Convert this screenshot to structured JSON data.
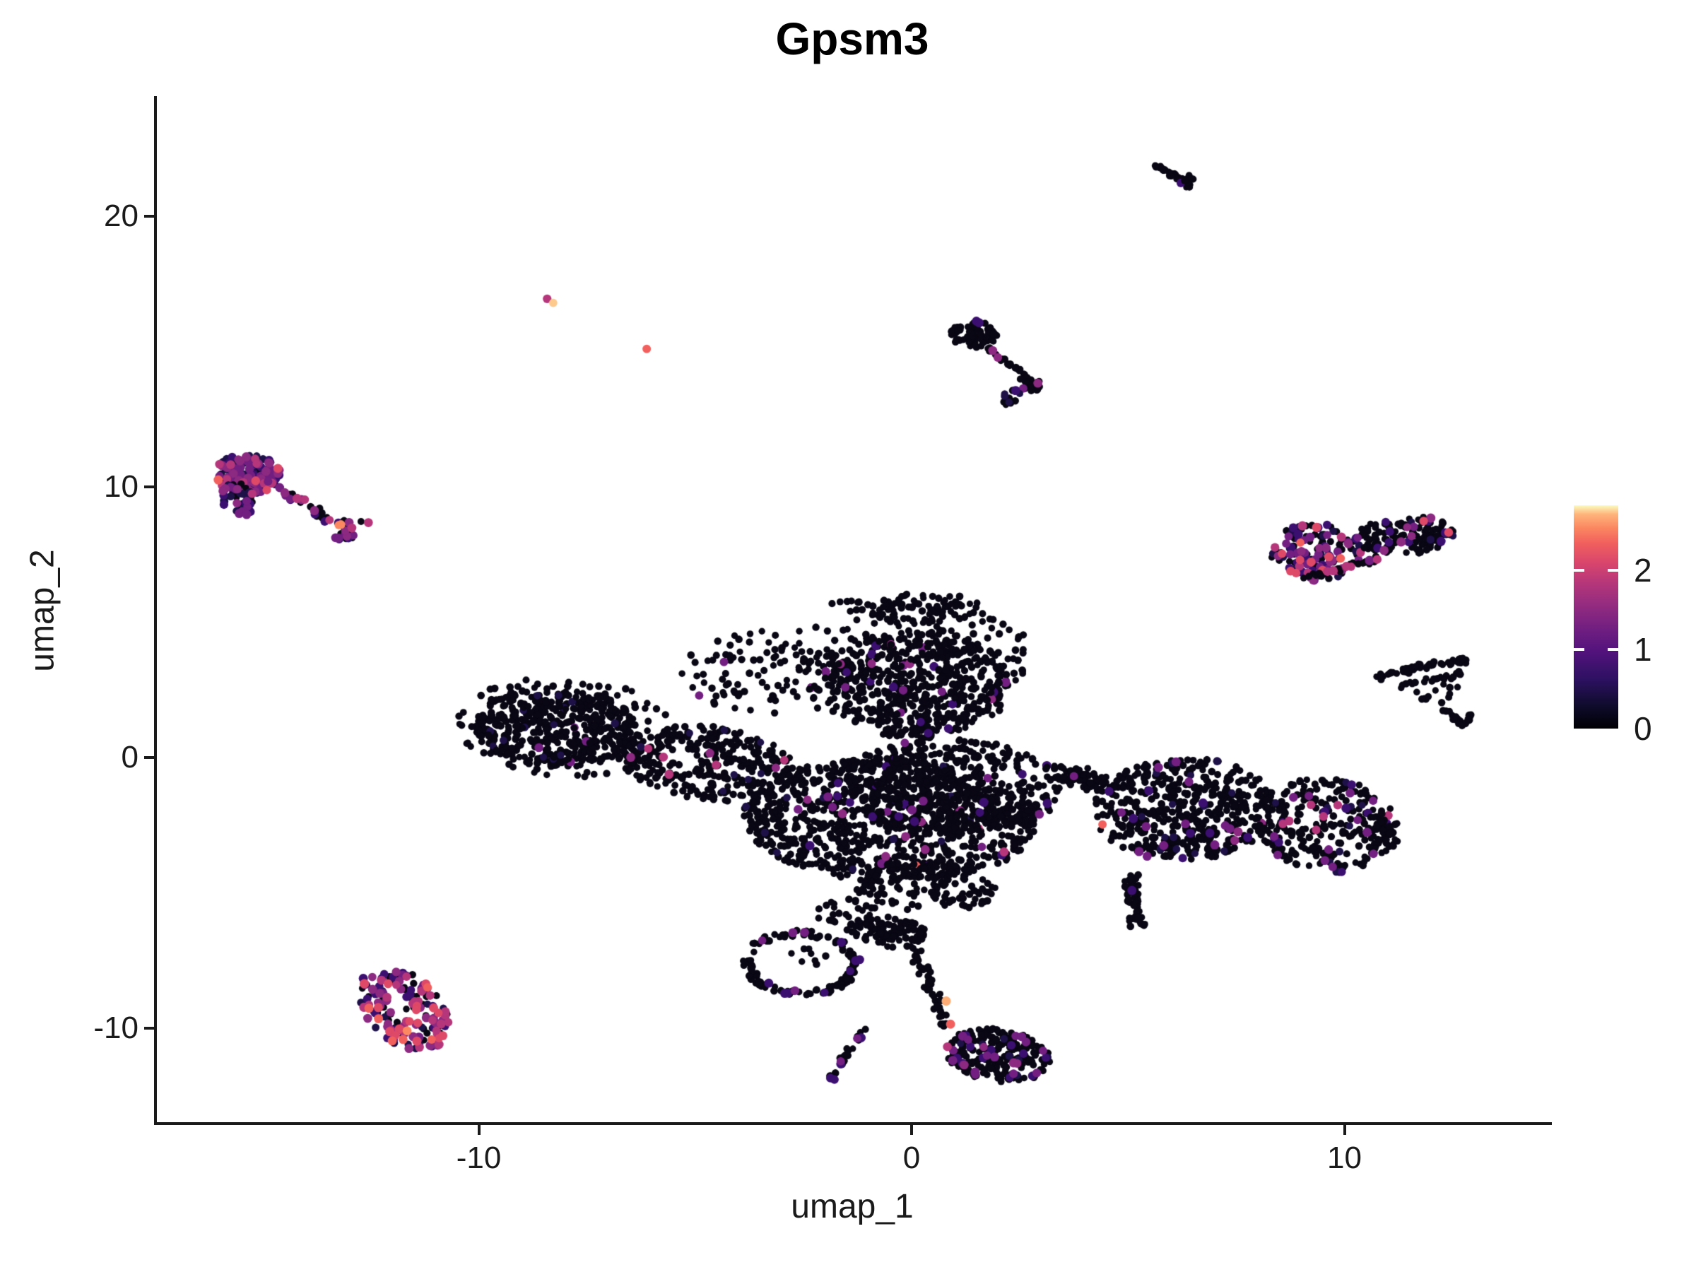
{
  "chart_data": {
    "type": "scatter",
    "title": "Gpsm3",
    "xlabel": "umap_1",
    "ylabel": "umap_2",
    "xlim": [
      -17.4,
      14.7
    ],
    "ylim": [
      -13.5,
      24.4
    ],
    "xticks": [
      -10,
      0,
      10
    ],
    "yticks": [
      20,
      10,
      0,
      -10
    ],
    "grid": false,
    "legend_position": "right",
    "legend": {
      "ticks": [
        2,
        1,
        0
      ],
      "max": 2.82,
      "bar_gradient": [
        [
          "0%",
          "#000004"
        ],
        [
          "10%",
          "#0e0b2b"
        ],
        [
          "22%",
          "#2d1161"
        ],
        [
          "34%",
          "#51127c"
        ],
        [
          "45%",
          "#721f81"
        ],
        [
          "55%",
          "#932b80"
        ],
        [
          "65%",
          "#b5367a"
        ],
        [
          "74%",
          "#d8456c"
        ],
        [
          "83%",
          "#f1605d"
        ],
        [
          "90%",
          "#fb8861"
        ],
        [
          "96%",
          "#feb57c"
        ],
        [
          "100%",
          "#fcfdbf"
        ]
      ]
    },
    "palette": {
      "k0": "#0a0714",
      "k1": "#1d1147",
      "k2": "#3b0f70",
      "k3": "#57157e",
      "k4": "#721f81",
      "k5": "#8c2981",
      "k6": "#b5367a",
      "k7": "#de4968",
      "k8": "#f1605d",
      "k9": "#fb8861",
      "k10": "#feac76",
      "k11": "#fec98d"
    },
    "palette_order": [
      "k0",
      "k1",
      "k2",
      "k3",
      "k4",
      "k5",
      "k6",
      "k7",
      "k8",
      "k9",
      "k10",
      "k11"
    ],
    "clusters": [
      {
        "name": "main-left-arm-core",
        "shape": "blob",
        "cx": -8.2,
        "cy": 1.1,
        "rx": 1.9,
        "ry": 1.45,
        "rot": -8,
        "n": 430,
        "colors": {
          "k0": 0.97,
          "k1": 0.02,
          "k4": 0.01
        }
      },
      {
        "name": "main-left-arm-halo",
        "shape": "blob",
        "cx": -8.0,
        "cy": 1.1,
        "rx": 2.5,
        "ry": 1.85,
        "rot": -8,
        "n": 130,
        "colors": {
          "k0": 1
        }
      },
      {
        "name": "main-neck",
        "shape": "blob",
        "cx": -4.7,
        "cy": -0.2,
        "rx": 2.1,
        "ry": 1.35,
        "rot": -14,
        "n": 330,
        "colors": {
          "k0": 0.95,
          "k1": 0.02,
          "k3": 0.01,
          "k5": 0.01,
          "k6": 0.01
        }
      },
      {
        "name": "upper-bridge-sparse",
        "shape": "blob",
        "cx": -3.7,
        "cy": 3.2,
        "rx": 1.8,
        "ry": 1.5,
        "rot": -30,
        "n": 80,
        "colors": {
          "k0": 0.97,
          "k4": 0.03
        }
      },
      {
        "name": "main-upper-core",
        "shape": "blob",
        "cx": 0.1,
        "cy": 2.7,
        "rx": 2.2,
        "ry": 2.0,
        "rot": 0,
        "n": 520,
        "colors": {
          "k0": 0.95,
          "k2": 0.02,
          "k4": 0.02,
          "k5": 0.01
        }
      },
      {
        "name": "main-upper-halo",
        "shape": "blob",
        "cx": -0.2,
        "cy": 3.6,
        "rx": 3.0,
        "ry": 2.5,
        "rot": 0,
        "n": 200,
        "colors": {
          "k0": 1
        }
      },
      {
        "name": "main-top-ridge",
        "shape": "blob",
        "cx": 0.3,
        "cy": 5.5,
        "rx": 1.3,
        "ry": 0.55,
        "rot": 5,
        "n": 70,
        "colors": {
          "k0": 1
        }
      },
      {
        "name": "main-lower-body",
        "shape": "blob",
        "cx": -0.5,
        "cy": -2.3,
        "rx": 3.4,
        "ry": 2.3,
        "rot": -4,
        "n": 950,
        "colors": {
          "k0": 0.955,
          "k1": 0.015,
          "k2": 0.01,
          "k4": 0.01,
          "k5": 0.005,
          "k6": 0.003,
          "k8": 0.002
        }
      },
      {
        "name": "main-mid-dense",
        "shape": "blob",
        "cx": 1.0,
        "cy": -1.0,
        "rx": 2.5,
        "ry": 1.7,
        "rot": -8,
        "n": 420,
        "colors": {
          "k0": 0.97,
          "k2": 0.02,
          "k4": 0.01
        }
      },
      {
        "name": "main-bottom-tip",
        "shape": "blob",
        "cx": 0.3,
        "cy": -4.8,
        "rx": 1.7,
        "ry": 0.9,
        "rot": -6,
        "n": 140,
        "colors": {
          "k0": 1
        }
      },
      {
        "name": "bridge-right",
        "shape": "line",
        "x1": 3.3,
        "y1": -0.5,
        "x2": 4.5,
        "y2": -1.0,
        "jitter": 0.4,
        "n": 70,
        "colors": {
          "k0": 0.97,
          "k4": 0.03
        }
      },
      {
        "name": "right-arm",
        "shape": "blob",
        "cx": 6.3,
        "cy": -1.9,
        "rx": 2.1,
        "ry": 1.9,
        "rot": 10,
        "n": 500,
        "colors": {
          "k0": 0.92,
          "k1": 0.025,
          "k2": 0.02,
          "k4": 0.02,
          "k5": 0.01,
          "k8": 0.005
        }
      },
      {
        "name": "right-arm-tail",
        "shape": "line",
        "x1": 5.05,
        "y1": -4.3,
        "x2": 5.25,
        "y2": -6.3,
        "jitter": 0.22,
        "n": 55,
        "colors": {
          "k0": 0.95,
          "k2": 0.05
        }
      },
      {
        "name": "right-wing",
        "shape": "blob",
        "cx": 9.6,
        "cy": -2.5,
        "rx": 1.6,
        "ry": 1.8,
        "rot": 25,
        "n": 280,
        "colors": {
          "k0": 0.9,
          "k1": 0.03,
          "k2": 0.03,
          "k4": 0.03,
          "k6": 0.01
        }
      },
      {
        "name": "right-wing-tip",
        "shape": "line",
        "x1": 10.7,
        "y1": -2.0,
        "x2": 11.1,
        "y2": -3.2,
        "jitter": 0.28,
        "n": 35,
        "colors": {
          "k0": 1
        }
      },
      {
        "name": "top-dash",
        "shape": "line",
        "x1": 5.7,
        "y1": 21.85,
        "x2": 6.5,
        "y2": 21.05,
        "jitter": 0.1,
        "n": 32,
        "colors": {
          "k0": 0.97,
          "k2": 0.03
        }
      },
      {
        "name": "top-dash-bump",
        "shape": "blob",
        "cx": 6.42,
        "cy": 21.35,
        "rx": 0.12,
        "ry": 0.18,
        "rot": 0,
        "n": 6,
        "colors": {
          "k0": 1
        }
      },
      {
        "name": "north-blob",
        "shape": "blob",
        "cx": 1.45,
        "cy": 15.65,
        "rx": 0.55,
        "ry": 0.5,
        "rot": 0,
        "n": 80,
        "colors": {
          "k0": 0.99,
          "k2": 0.01
        }
      },
      {
        "name": "north-tail",
        "shape": "line",
        "x1": 1.7,
        "y1": 15.2,
        "x2": 2.8,
        "y2": 13.9,
        "jitter": 0.08,
        "n": 26,
        "colors": {
          "k0": 0.96,
          "k5": 0.04
        }
      },
      {
        "name": "north-tail-end",
        "shape": "blob",
        "cx": 2.78,
        "cy": 13.85,
        "rx": 0.3,
        "ry": 0.3,
        "rot": 0,
        "n": 16,
        "colors": {
          "k0": 0.82,
          "k4": 0.12,
          "k5": 0.06
        }
      },
      {
        "name": "north-sub",
        "shape": "blob",
        "cx": 2.3,
        "cy": 13.3,
        "rx": 0.28,
        "ry": 0.32,
        "rot": 0,
        "n": 13,
        "colors": {
          "k0": 0.7,
          "k1": 0.15,
          "k2": 0.15
        }
      },
      {
        "name": "pink-pair",
        "shape": "points",
        "pts": [
          [
            -8.42,
            16.95,
            "k6"
          ],
          [
            -8.28,
            16.8,
            "k11"
          ]
        ]
      },
      {
        "name": "lone-dot",
        "shape": "points",
        "pts": [
          [
            -6.12,
            15.1,
            "k8"
          ]
        ]
      },
      {
        "name": "west-main",
        "shape": "blob",
        "cx": -15.35,
        "cy": 10.45,
        "rx": 0.78,
        "ry": 0.72,
        "rot": -15,
        "n": 150,
        "colors": {
          "k0": 0.26,
          "k1": 0.18,
          "k2": 0.13,
          "k4": 0.16,
          "k5": 0.13,
          "k6": 0.09,
          "k7": 0.04,
          "k8": 0.01
        }
      },
      {
        "name": "west-lower",
        "shape": "blob",
        "cx": -15.55,
        "cy": 9.55,
        "rx": 0.38,
        "ry": 0.62,
        "rot": 10,
        "n": 55,
        "colors": {
          "k0": 0.34,
          "k1": 0.2,
          "k2": 0.18,
          "k4": 0.14,
          "k5": 0.08,
          "k6": 0.06
        }
      },
      {
        "name": "west-trail",
        "shape": "line",
        "x1": -14.85,
        "y1": 10.2,
        "x2": -13.3,
        "y2": 8.6,
        "jitter": 0.14,
        "n": 26,
        "colors": {
          "k0": 0.3,
          "k2": 0.1,
          "k4": 0.22,
          "k5": 0.14,
          "k6": 0.14,
          "k7": 0.06,
          "k9": 0.04
        }
      },
      {
        "name": "west-trail-end",
        "shape": "blob",
        "cx": -13.15,
        "cy": 8.35,
        "rx": 0.3,
        "ry": 0.5,
        "rot": 0,
        "n": 22,
        "colors": {
          "k0": 0.35,
          "k2": 0.12,
          "k4": 0.2,
          "k5": 0.13,
          "k6": 0.1,
          "k9": 0.1
        }
      },
      {
        "name": "west-pair",
        "shape": "points",
        "pts": [
          [
            -12.72,
            8.72,
            "k0"
          ],
          [
            -12.55,
            8.68,
            "k6"
          ]
        ]
      },
      {
        "name": "east-left",
        "shape": "blob",
        "cx": 9.35,
        "cy": 7.6,
        "rx": 1.05,
        "ry": 1.05,
        "rot": 0,
        "n": 130,
        "colors": {
          "k0": 0.42,
          "k1": 0.1,
          "k2": 0.12,
          "k4": 0.14,
          "k5": 0.1,
          "k6": 0.06,
          "k7": 0.04,
          "k8": 0.02
        }
      },
      {
        "name": "east-right",
        "shape": "blob",
        "cx": 11.4,
        "cy": 8.2,
        "rx": 1.15,
        "ry": 0.7,
        "rot": 8,
        "n": 140,
        "colors": {
          "k0": 0.8,
          "k1": 0.05,
          "k2": 0.05,
          "k4": 0.05,
          "k5": 0.03,
          "k7": 0.02
        }
      },
      {
        "name": "east-lower-rim",
        "shape": "line",
        "x1": 9.1,
        "y1": 6.7,
        "x2": 10.8,
        "y2": 7.3,
        "jitter": 0.18,
        "n": 25,
        "colors": {
          "k0": 0.85,
          "k4": 0.1,
          "k6": 0.05
        }
      },
      {
        "name": "tri-top",
        "shape": "line",
        "x1": 10.75,
        "y1": 3.0,
        "x2": 12.75,
        "y2": 3.6,
        "jitter": 0.16,
        "n": 50,
        "colors": {
          "k0": 1
        }
      },
      {
        "name": "tri-mid",
        "shape": "line",
        "x1": 11.4,
        "y1": 2.6,
        "x2": 12.7,
        "y2": 3.1,
        "jitter": 0.14,
        "n": 22,
        "colors": {
          "k0": 0.95,
          "k3": 0.05
        }
      },
      {
        "name": "tri-sparse",
        "shape": "blob",
        "cx": 12.15,
        "cy": 2.4,
        "rx": 0.55,
        "ry": 0.4,
        "rot": 0,
        "n": 12,
        "colors": {
          "k0": 1
        }
      },
      {
        "name": "tri-hook-a",
        "shape": "line",
        "x1": 12.3,
        "y1": 1.8,
        "x2": 12.75,
        "y2": 1.15,
        "jitter": 0.09,
        "n": 14,
        "colors": {
          "k0": 1
        }
      },
      {
        "name": "tri-hook-b",
        "shape": "line",
        "x1": 12.75,
        "y1": 1.15,
        "x2": 12.95,
        "y2": 1.7,
        "jitter": 0.07,
        "n": 9,
        "colors": {
          "k0": 1
        }
      },
      {
        "name": "ring",
        "shape": "ring",
        "cx": -2.55,
        "cy": -7.6,
        "rx": 1.25,
        "ry": 1.1,
        "rot": -8,
        "th": 0.2,
        "n": 130,
        "colors": {
          "k0": 0.95,
          "k2": 0.03,
          "k4": 0.02
        }
      },
      {
        "name": "ring-inner",
        "shape": "blob",
        "cx": -2.45,
        "cy": -7.35,
        "rx": 0.5,
        "ry": 0.4,
        "rot": 0,
        "n": 8,
        "colors": {
          "k0": 0.9,
          "k1": 0.1
        }
      },
      {
        "name": "ring-east",
        "shape": "blob",
        "cx": -0.55,
        "cy": -6.45,
        "rx": 0.95,
        "ry": 0.55,
        "rot": -12,
        "n": 100,
        "colors": {
          "k0": 1
        }
      },
      {
        "name": "ring-upper-scatter",
        "shape": "blob",
        "cx": -1.4,
        "cy": -5.8,
        "rx": 0.85,
        "ry": 0.6,
        "rot": -20,
        "n": 30,
        "colors": {
          "k0": 1
        }
      },
      {
        "name": "strand-south",
        "shape": "line",
        "x1": 0.05,
        "y1": -7.1,
        "x2": 0.85,
        "y2": -10.0,
        "jitter": 0.2,
        "n": 48,
        "colors": {
          "k0": 1
        }
      },
      {
        "name": "strand-accents",
        "shape": "points",
        "pts": [
          [
            0.8,
            -9.0,
            "k10"
          ],
          [
            0.9,
            -9.85,
            "k8"
          ]
        ]
      },
      {
        "name": "south-main",
        "shape": "blob",
        "cx": 2.0,
        "cy": -11.0,
        "rx": 1.25,
        "ry": 0.95,
        "rot": -18,
        "n": 240,
        "colors": {
          "k0": 0.83,
          "k1": 0.05,
          "k2": 0.05,
          "k4": 0.04,
          "k5": 0.02,
          "k6": 0.01
        }
      },
      {
        "name": "south-streak",
        "shape": "line",
        "x1": -1.05,
        "y1": -10.0,
        "x2": -1.9,
        "y2": -11.9,
        "jitter": 0.12,
        "n": 26,
        "colors": {
          "k0": 0.78,
          "k2": 0.12,
          "k4": 0.1
        }
      },
      {
        "name": "southwest",
        "shape": "blob",
        "cx": -11.75,
        "cy": -9.3,
        "rx": 0.95,
        "ry": 1.6,
        "rot": 22,
        "n": 170,
        "colors": {
          "k0": 0.3,
          "k1": 0.07,
          "k2": 0.09,
          "k4": 0.12,
          "k5": 0.12,
          "k6": 0.13,
          "k7": 0.1,
          "k8": 0.05,
          "k9": 0.02
        }
      }
    ]
  }
}
